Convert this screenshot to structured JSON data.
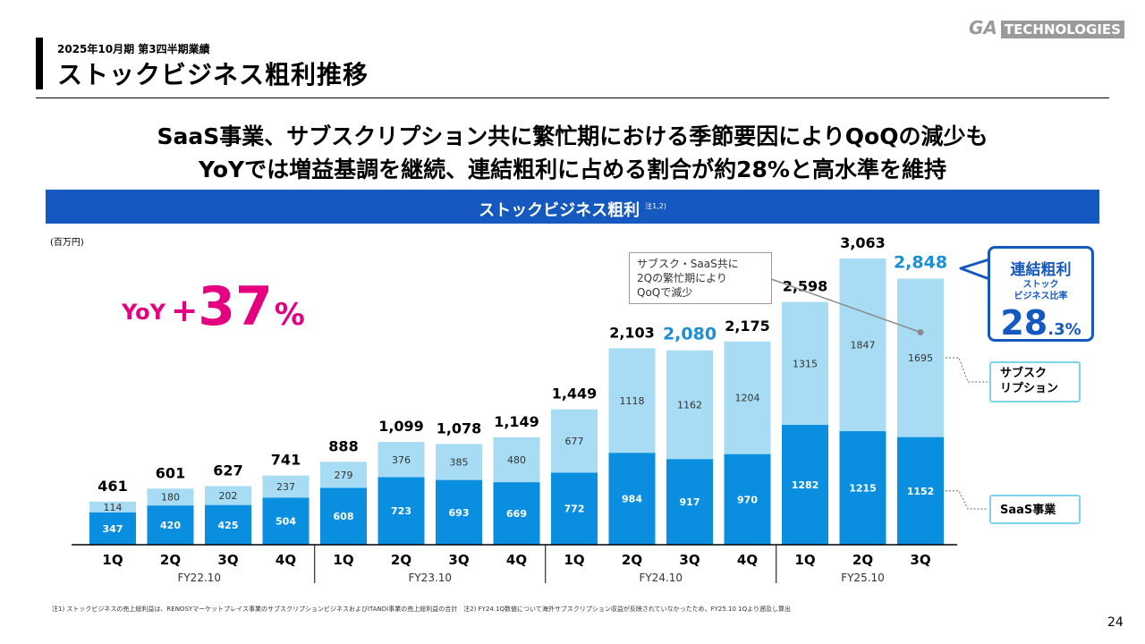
{
  "header": {
    "period": "2025年10月期 第3四半期業績",
    "title": "ストックビジネス粗利推移",
    "logo_ga": "GA",
    "logo_tech": "TECHNOLOGIES"
  },
  "headline": {
    "line1": "SaaS事業、サブスクリプション共に繁忙期における季節要因によりQoQの減少も",
    "line2": "YoYでは増益基調を継続、連結粗利に占める割合が約28%と高水準を維持"
  },
  "banner": {
    "title": "ストックビジネス粗利",
    "note": "注1,2)"
  },
  "unit": "(百万円)",
  "yoy": {
    "label": "YoY",
    "sign": "+",
    "value": "37",
    "unit": "%"
  },
  "callout": {
    "lines": [
      "サブスク・SaaS共に",
      "2Qの繁忙期により",
      "QoQで減少"
    ]
  },
  "ratio": {
    "title": "連結粗利",
    "sub1": "ストック",
    "sub2": "ビジネス比率",
    "value_int": "28",
    "value_dec": ".3%"
  },
  "legend": {
    "subscription_line1": "サブスク",
    "subscription_line2": "リプション",
    "saas": "SaaS事業"
  },
  "colors": {
    "saas": "#0a8fe0",
    "subscription": "#a8dcf5",
    "brand": "#1558c0",
    "highlight": "#e4007f",
    "total_emphasis": "#1a8fd6"
  },
  "chart_data": {
    "type": "bar",
    "stacked": true,
    "categories": [
      "1Q",
      "2Q",
      "3Q",
      "4Q",
      "1Q",
      "2Q",
      "3Q",
      "4Q",
      "1Q",
      "2Q",
      "3Q",
      "4Q",
      "1Q",
      "2Q",
      "3Q"
    ],
    "fiscal_years": [
      {
        "label": "FY22.10",
        "quarters": 4
      },
      {
        "label": "FY23.10",
        "quarters": 4
      },
      {
        "label": "FY24.10",
        "quarters": 4
      },
      {
        "label": "FY25.10",
        "quarters": 3
      }
    ],
    "series": [
      {
        "name": "SaaS事業",
        "values": [
          347,
          420,
          425,
          504,
          608,
          723,
          693,
          669,
          772,
          984,
          917,
          970,
          1282,
          1215,
          1152
        ]
      },
      {
        "name": "サブスクリプション",
        "values": [
          114,
          180,
          202,
          237,
          279,
          376,
          385,
          480,
          677,
          1118,
          1162,
          1204,
          1315,
          1847,
          1695
        ]
      }
    ],
    "totals": [
      "461",
      "601",
      "627",
      "741",
      "888",
      "1,099",
      "1,078",
      "1,149",
      "1,449",
      "2,103",
      "2,080",
      "2,175",
      "2,598",
      "3,063",
      "2,848"
    ],
    "emphasized_totals": [
      10,
      14
    ],
    "ylim": [
      0,
      3200
    ],
    "grid": false
  },
  "footnote": "注1) ストックビジネスの売上総利益は、RENOSYマーケットプレイス事業のサブスクリプションビジネスおよびITANDI事業の売上総利益の合計　注2) FY24.1Q数値について海外サブスクリプション収益が反映されていなかったため、FY25.10 1Qより遡及し算出",
  "page_number": "24"
}
